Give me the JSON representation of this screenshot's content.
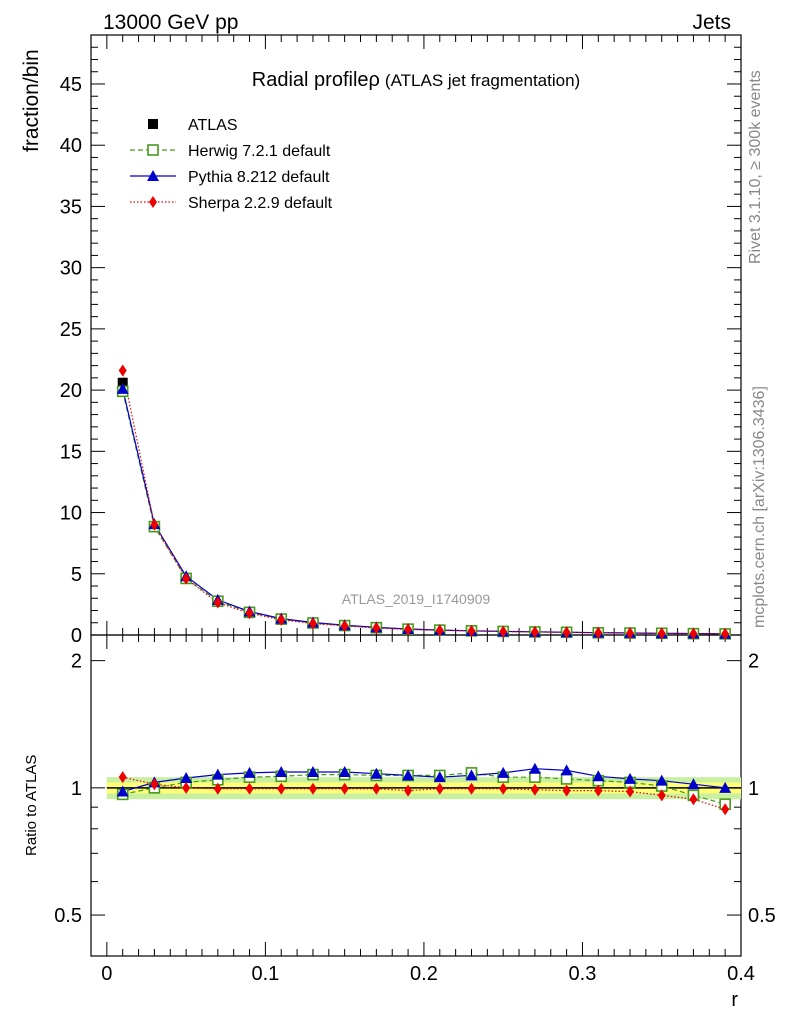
{
  "header": {
    "energy_label": "13000 GeV pp",
    "process_label": "Jets"
  },
  "side_labels": {
    "rivet": "Rivet 3.1.10, ≥ 300k events",
    "mcplots": "mcplots.cern.ch [arXiv:1306.3436]"
  },
  "analysis_id": "ATLAS_2019_I1740909",
  "colors": {
    "atlas": "#000000",
    "herwig": "#4a9a1a",
    "pythia": "#0000cc",
    "sherpa": "#ee0000",
    "band_inner": "#ffff77",
    "band_outer": "#c8f0a0"
  },
  "chart_data": [
    {
      "type": "line",
      "title": "Radial profile",
      "title_symbol": "ρ",
      "title_suffix": "(ATLAS jet fragmentation)",
      "xlabel": "r",
      "ylabel": "fraction/bin",
      "xlim": [
        -0.01,
        0.4
      ],
      "ylim": [
        0,
        49
      ],
      "yticks": [
        "0",
        "5",
        "10",
        "15",
        "20",
        "25",
        "30",
        "35",
        "40",
        "45"
      ],
      "x": [
        0.01,
        0.03,
        0.05,
        0.07,
        0.09,
        0.11,
        0.13,
        0.15,
        0.17,
        0.19,
        0.21,
        0.23,
        0.25,
        0.27,
        0.29,
        0.31,
        0.33,
        0.35,
        0.37,
        0.39
      ],
      "series": [
        {
          "name": "ATLAS",
          "marker": "square",
          "values": [
            20.6,
            8.9,
            4.6,
            2.7,
            1.8,
            1.25,
            0.95,
            0.75,
            0.58,
            0.47,
            0.39,
            0.33,
            0.28,
            0.24,
            0.21,
            0.18,
            0.16,
            0.14,
            0.12,
            0.1
          ]
        },
        {
          "name": "Herwig 7.2.1 default",
          "marker": "open-square",
          "values": [
            19.9,
            8.85,
            4.62,
            2.76,
            1.85,
            1.3,
            0.98,
            0.77,
            0.6,
            0.48,
            0.4,
            0.34,
            0.29,
            0.25,
            0.22,
            0.18,
            0.16,
            0.14,
            0.11,
            0.09
          ]
        },
        {
          "name": "Pythia 8.212 default",
          "marker": "triangle",
          "values": [
            20.1,
            9.05,
            4.8,
            2.87,
            1.92,
            1.34,
            1.02,
            0.8,
            0.62,
            0.49,
            0.4,
            0.34,
            0.29,
            0.26,
            0.23,
            0.19,
            0.17,
            0.14,
            0.12,
            0.1
          ]
        },
        {
          "name": "Sherpa 2.2.9 default",
          "marker": "diamond",
          "values": [
            21.6,
            9.0,
            4.6,
            2.65,
            1.78,
            1.24,
            0.94,
            0.74,
            0.57,
            0.46,
            0.38,
            0.33,
            0.28,
            0.24,
            0.21,
            0.18,
            0.15,
            0.13,
            0.11,
            0.09
          ]
        }
      ]
    },
    {
      "type": "line",
      "title": "",
      "xlabel": "r",
      "ylabel": "Ratio to ATLAS",
      "xlim": [
        -0.01,
        0.4
      ],
      "ylim": [
        0.4,
        2.3
      ],
      "yticks": [
        "0.5",
        "1",
        "2"
      ],
      "xticks": [
        "0",
        "0.1",
        "0.2",
        "0.3",
        "0.4"
      ],
      "x": [
        0.01,
        0.03,
        0.05,
        0.07,
        0.09,
        0.11,
        0.13,
        0.15,
        0.17,
        0.19,
        0.21,
        0.23,
        0.25,
        0.27,
        0.29,
        0.31,
        0.33,
        0.35,
        0.37,
        0.39
      ],
      "band": {
        "inner": 0.03,
        "outer": 0.06
      },
      "series": [
        {
          "name": "Herwig 7.2.1 default",
          "values": [
            0.965,
            1.0,
            1.03,
            1.045,
            1.06,
            1.065,
            1.075,
            1.075,
            1.07,
            1.07,
            1.07,
            1.085,
            1.06,
            1.06,
            1.05,
            1.04,
            1.03,
            1.01,
            0.96,
            0.915
          ]
        },
        {
          "name": "Pythia 8.212 default",
          "values": [
            0.98,
            1.03,
            1.055,
            1.075,
            1.085,
            1.09,
            1.09,
            1.09,
            1.08,
            1.07,
            1.06,
            1.07,
            1.085,
            1.11,
            1.1,
            1.065,
            1.05,
            1.04,
            1.02,
            1.0
          ]
        },
        {
          "name": "Sherpa 2.2.9 default",
          "values": [
            1.06,
            1.02,
            1.0,
            0.995,
            0.995,
            0.995,
            0.995,
            0.995,
            0.995,
            0.985,
            0.995,
            0.995,
            0.995,
            0.99,
            0.985,
            0.985,
            0.98,
            0.96,
            0.94,
            0.89
          ]
        }
      ]
    }
  ]
}
